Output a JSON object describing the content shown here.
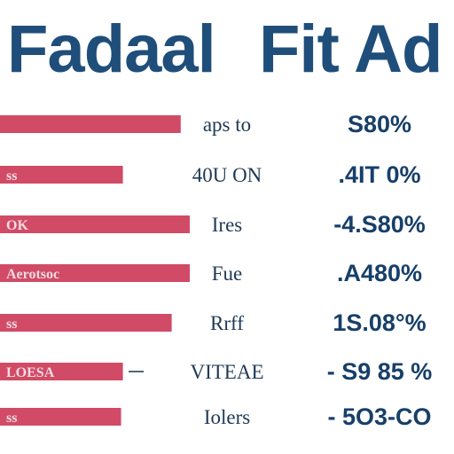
{
  "title": {
    "left": "Fadaal",
    "right": "Fit Ad"
  },
  "colors": {
    "bar": "#d14b66",
    "title": "#1f4e7a",
    "value": "#173f69",
    "category": "#203a56"
  },
  "chart_data": {
    "type": "bar",
    "orientation": "horizontal",
    "categories": [
      "aps to",
      "40U ON",
      "Ires",
      "Fue",
      "Rrff",
      "VITEAE",
      "Iolers"
    ],
    "bar_labels": [
      "",
      "ss",
      "OK",
      "Aerotsoc",
      "ss",
      "LOESA",
      "ss"
    ],
    "value_labels": [
      "S80%",
      ".4IT 0%",
      "-4.S80%",
      ".A480%",
      "1S.08°%",
      "- S9 85 %",
      "- 5O3-CO"
    ],
    "values": [
      100,
      68,
      105,
      105,
      95,
      68,
      67
    ],
    "grid": false,
    "legend": "none"
  }
}
